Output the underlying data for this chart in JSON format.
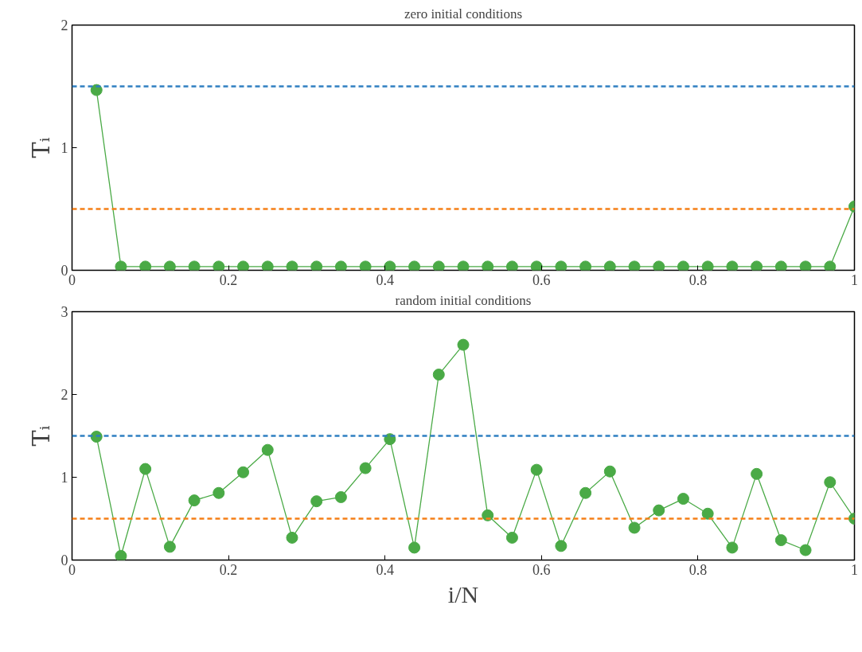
{
  "chart_data": [
    {
      "type": "line",
      "title": "zero initial conditions",
      "ylabel": "Tᵢ",
      "x": [
        0.03125,
        0.0625,
        0.09375,
        0.125,
        0.15625,
        0.1875,
        0.21875,
        0.25,
        0.28125,
        0.3125,
        0.34375,
        0.375,
        0.40625,
        0.4375,
        0.46875,
        0.5,
        0.53125,
        0.5625,
        0.59375,
        0.625,
        0.65625,
        0.6875,
        0.71875,
        0.75,
        0.78125,
        0.8125,
        0.84375,
        0.875,
        0.90625,
        0.9375,
        0.96875,
        1.0
      ],
      "series": [
        {
          "color": "#4aaa46",
          "values": [
            1.47,
            0.03,
            0.03,
            0.03,
            0.03,
            0.03,
            0.03,
            0.03,
            0.03,
            0.03,
            0.03,
            0.03,
            0.03,
            0.03,
            0.03,
            0.03,
            0.03,
            0.03,
            0.03,
            0.03,
            0.03,
            0.03,
            0.03,
            0.03,
            0.03,
            0.03,
            0.03,
            0.03,
            0.03,
            0.03,
            0.03,
            0.52
          ]
        }
      ],
      "marker": "circle",
      "line_style": "solid",
      "grid": false,
      "xlim": [
        0,
        1
      ],
      "xticks": [
        0,
        0.2,
        0.4,
        0.6,
        0.8,
        1
      ],
      "ylim": [
        0,
        2
      ],
      "yticks": [
        0,
        1,
        2
      ],
      "ref_lines": [
        {
          "axis": "y",
          "value": 1.5,
          "color": "#2f7fc1",
          "line_style": "dashed"
        },
        {
          "axis": "y",
          "value": 0.5,
          "color": "#f57f17",
          "line_style": "dashed"
        }
      ]
    },
    {
      "type": "line",
      "title": "random initial conditions",
      "xlabel": "i/N",
      "ylabel": "Tᵢ",
      "x": [
        0.03125,
        0.0625,
        0.09375,
        0.125,
        0.15625,
        0.1875,
        0.21875,
        0.25,
        0.28125,
        0.3125,
        0.34375,
        0.375,
        0.40625,
        0.4375,
        0.46875,
        0.5,
        0.53125,
        0.5625,
        0.59375,
        0.625,
        0.65625,
        0.6875,
        0.71875,
        0.75,
        0.78125,
        0.8125,
        0.84375,
        0.875,
        0.90625,
        0.9375,
        0.96875,
        1.0
      ],
      "series": [
        {
          "color": "#4aaa46",
          "values": [
            1.49,
            0.05,
            1.1,
            0.16,
            0.72,
            0.81,
            1.06,
            1.33,
            0.27,
            0.71,
            0.76,
            1.11,
            1.46,
            0.15,
            2.24,
            2.6,
            0.54,
            0.27,
            1.09,
            0.17,
            0.81,
            1.07,
            0.39,
            0.6,
            0.74,
            0.56,
            0.15,
            1.04,
            0.24,
            0.12,
            0.94,
            0.5
          ]
        }
      ],
      "marker": "circle",
      "line_style": "solid",
      "grid": false,
      "xlim": [
        0,
        1
      ],
      "xticks": [
        0,
        0.2,
        0.4,
        0.6,
        0.8,
        1
      ],
      "ylim": [
        0,
        3
      ],
      "yticks": [
        0,
        1,
        2,
        3
      ],
      "ref_lines": [
        {
          "axis": "y",
          "value": 1.5,
          "color": "#2f7fc1",
          "line_style": "dashed"
        },
        {
          "axis": "y",
          "value": 0.5,
          "color": "#f57f17",
          "line_style": "dashed"
        }
      ]
    }
  ]
}
